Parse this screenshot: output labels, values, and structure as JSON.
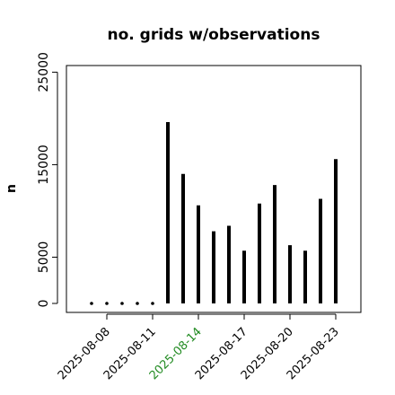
{
  "chart_data": {
    "type": "bar",
    "title": "no. grids w/observations",
    "xlabel": "",
    "ylabel": "n",
    "ylim": [
      0,
      26000
    ],
    "yticks": [
      0,
      5000,
      15000,
      25000
    ],
    "grid": false,
    "legend": "none",
    "x": [
      "2025-08-07",
      "2025-08-08",
      "2025-08-09",
      "2025-08-10",
      "2025-08-11",
      "2025-08-12",
      "2025-08-13",
      "2025-08-14",
      "2025-08-15",
      "2025-08-16",
      "2025-08-17",
      "2025-08-18",
      "2025-08-19",
      "2025-08-20",
      "2025-08-21",
      "2025-08-22",
      "2025-08-23"
    ],
    "values": [
      0,
      0,
      0,
      0,
      0,
      19600,
      14000,
      10600,
      7800,
      8400,
      5700,
      10800,
      12800,
      6300,
      5700,
      11300,
      15600
    ],
    "xticks": [
      {
        "label": "2025-08-08",
        "x": "2025-08-08",
        "color": "#000000"
      },
      {
        "label": "2025-08-11",
        "x": "2025-08-11",
        "color": "#000000"
      },
      {
        "label": "2025-08-14",
        "x": "2025-08-14",
        "color": "#228B22"
      },
      {
        "label": "2025-08-17",
        "x": "2025-08-17",
        "color": "#000000"
      },
      {
        "label": "2025-08-20",
        "x": "2025-08-20",
        "color": "#000000"
      },
      {
        "label": "2025-08-23",
        "x": "2025-08-23",
        "color": "#000000"
      }
    ],
    "colors": {
      "bars": "#000000",
      "axis": "#000000"
    }
  }
}
